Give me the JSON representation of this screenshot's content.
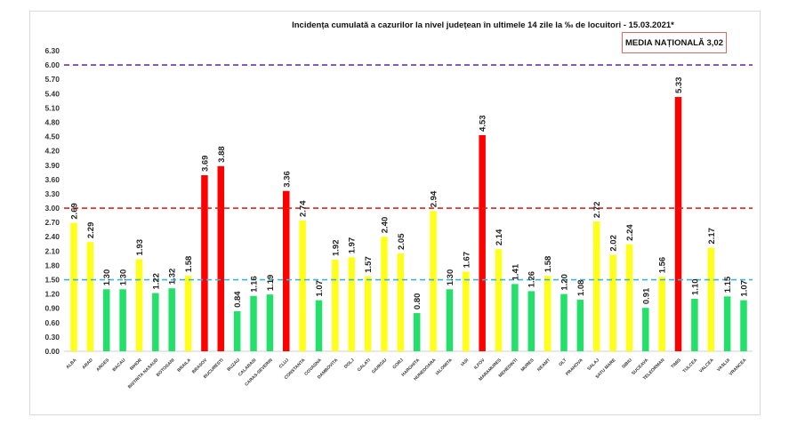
{
  "chart_data": {
    "type": "bar",
    "title": "Incidența cumulată a cazurilor la nivel județean în ultimele 14 zile   la ‰ de locuitori  - 15.03.2021*",
    "xlabel": "",
    "ylabel": "",
    "ylim": [
      0,
      6.3
    ],
    "yticks": [
      "0.00",
      "0.30",
      "0.60",
      "0.90",
      "1.20",
      "1.50",
      "1.80",
      "2.10",
      "2.40",
      "2.70",
      "3.00",
      "3.30",
      "3.60",
      "3.90",
      "4.20",
      "4.50",
      "4.80",
      "5.10",
      "5.40",
      "5.70",
      "6.00",
      "6.30"
    ],
    "grid": false,
    "categories": [
      "ALBA",
      "ARAD",
      "ARGES",
      "BACAU",
      "BIHOR",
      "BISTRITA NASAUD",
      "BOTOSANI",
      "BRAILA",
      "BRASOV",
      "BUCURESTI",
      "BUZAU",
      "CALARASI",
      "CARAS-SEVERIN",
      "CLUJ",
      "CONSTANTA",
      "COVASNA",
      "DAMBOVITA",
      "DOLJ",
      "GALATI",
      "GIURGIU",
      "GORJ",
      "HARGHITA",
      "HUNEDOARA",
      "IALOMITA",
      "IASI",
      "ILFOV",
      "MARAMURES",
      "MEHEDINTI",
      "MURES",
      "NEAMT",
      "OLT",
      "PRAHOVA",
      "SALAJ",
      "SATU MARE",
      "SIBIU",
      "SUCEAVA",
      "TELEORMAN",
      "TIMIS",
      "TULCEA",
      "VALCEA",
      "VASLUI",
      "VRANCEA"
    ],
    "values": [
      2.69,
      2.29,
      1.3,
      1.3,
      1.93,
      1.22,
      1.32,
      1.58,
      3.69,
      3.88,
      0.84,
      1.16,
      1.19,
      3.36,
      2.74,
      1.07,
      1.92,
      1.97,
      1.57,
      2.4,
      2.05,
      0.8,
      2.94,
      1.3,
      1.67,
      4.53,
      2.14,
      1.41,
      1.26,
      1.58,
      1.2,
      1.08,
      2.72,
      2.02,
      2.24,
      0.91,
      1.56,
      5.33,
      1.1,
      2.17,
      1.15,
      1.07
    ],
    "value_labels": [
      "2.69",
      "2.29",
      "1.30",
      "1.30",
      "1.93",
      "1.22",
      "1.32",
      "1.58",
      "3.69",
      "3.88",
      "0.84",
      "1.16",
      "1.19",
      "3.36",
      "2.74",
      "1.07",
      "1.92",
      "1.97",
      "1.57",
      "2.40",
      "2.05",
      "0.80",
      "2.94",
      "1.30",
      "1.67",
      "4.53",
      "2.14",
      "1.41",
      "1.26",
      "1.58",
      "1.20",
      "1.08",
      "2.72",
      "2.02",
      "2.24",
      "0.91",
      "1.56",
      "5.33",
      "1.10",
      "2.17",
      "1.15",
      "1.07"
    ],
    "reference_lines": [
      {
        "value": 6.0,
        "color": "#7030a0"
      },
      {
        "value": 3.0,
        "color": "#e02020"
      },
      {
        "value": 1.5,
        "color": "#3cb4d8"
      }
    ],
    "color_rules": {
      "low": "#22e06a",
      "mid": "#ffff1a",
      "high": "#ff0000"
    },
    "legend": "none"
  },
  "annotation": {
    "media_label": "MEDIA NAȚIONALĂ 3,02"
  }
}
